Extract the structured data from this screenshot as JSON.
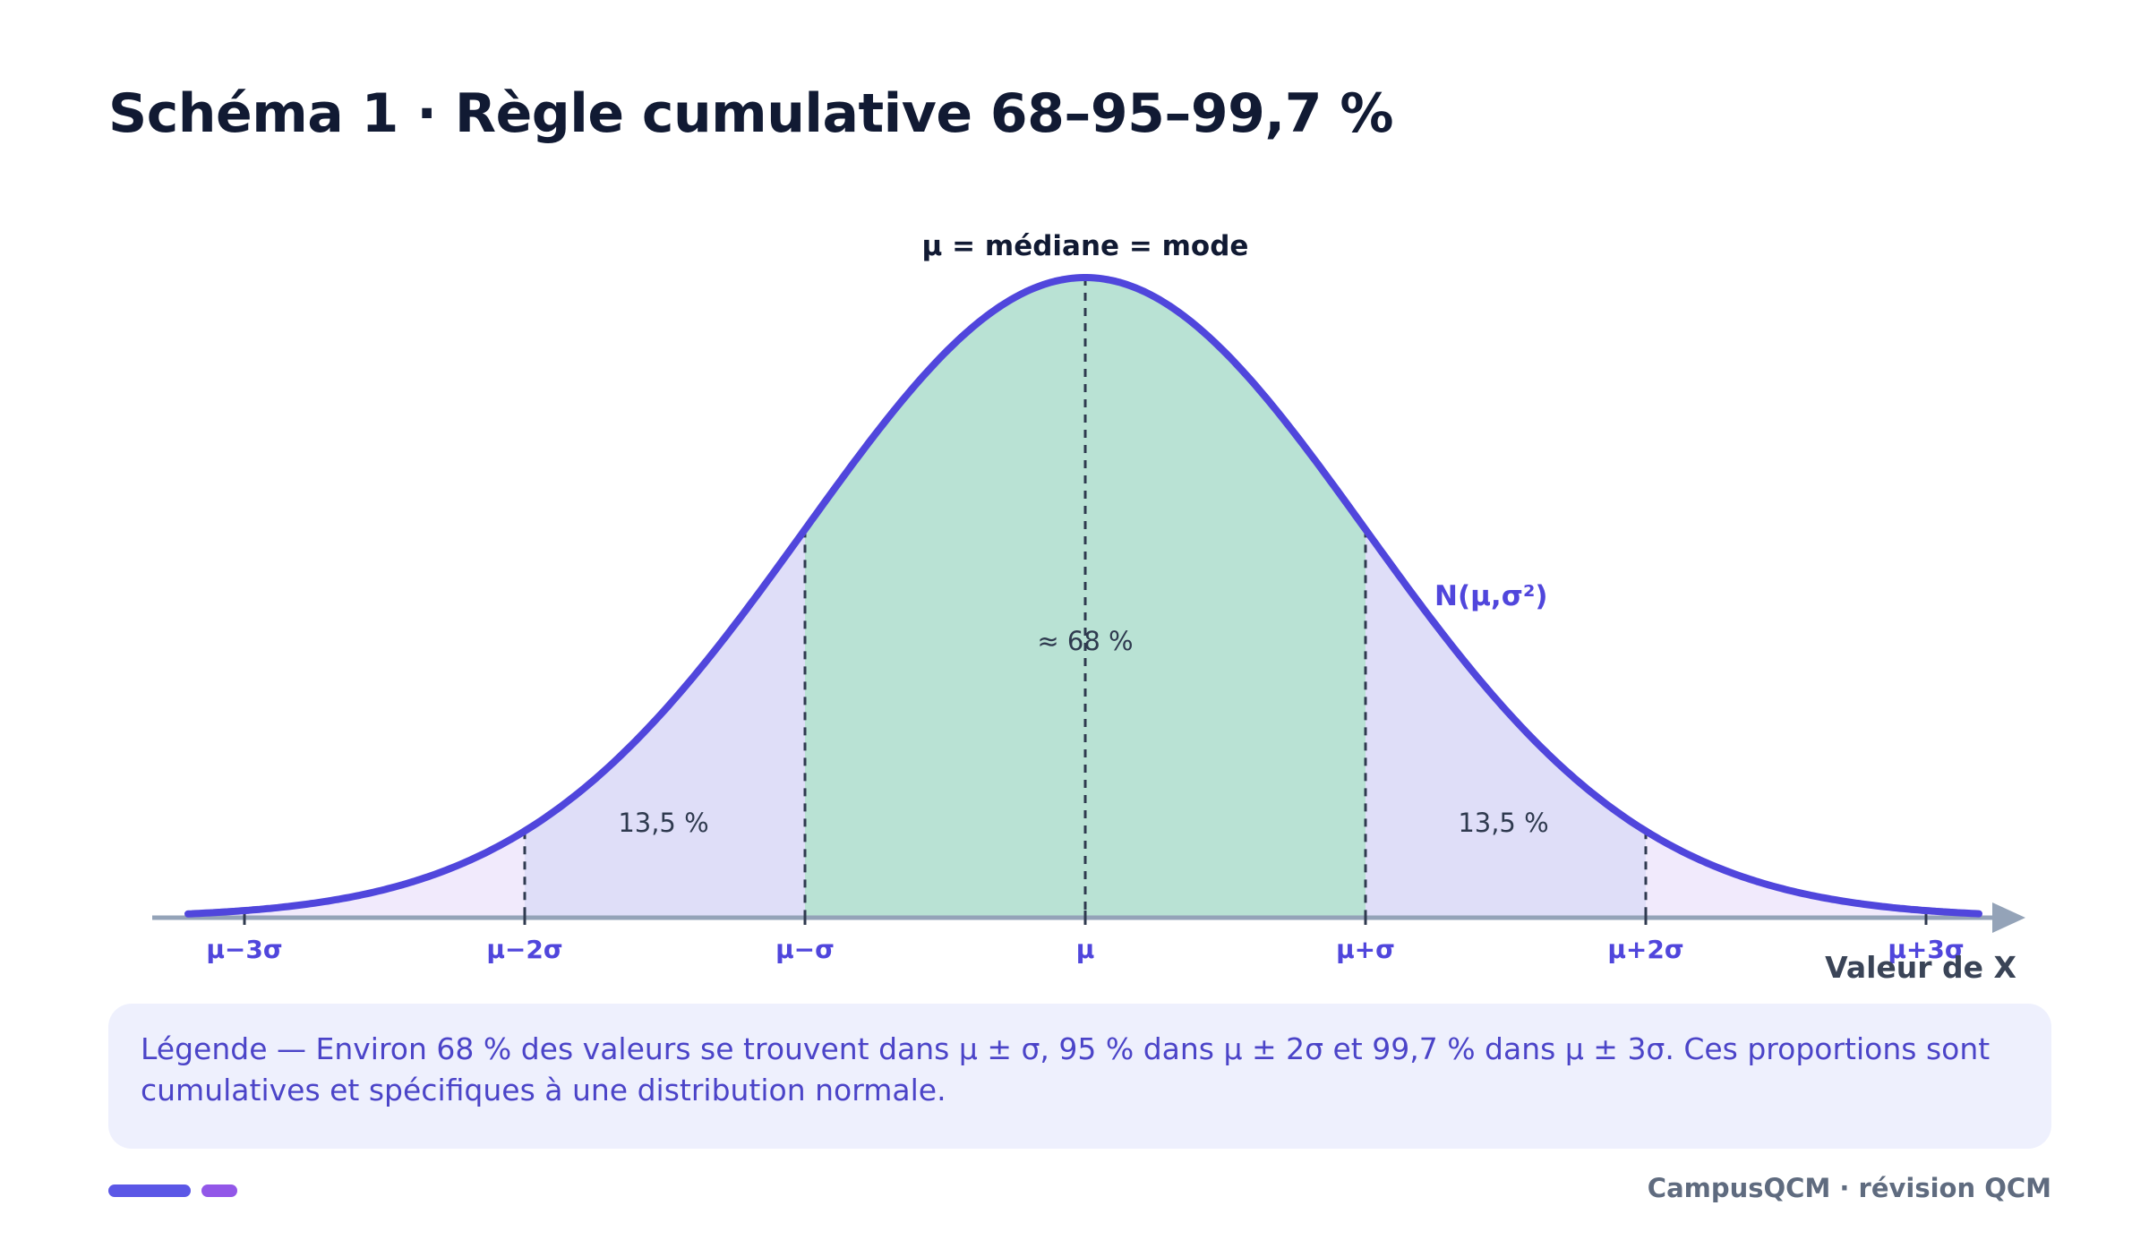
{
  "title": "Schéma 1 · Règle cumulative 68–95–99,7 %",
  "diagram": {
    "mean_label": "μ = médiane = mode",
    "center_percent": "≈ 68 %",
    "left_band_percent": "13,5 %",
    "right_band_percent": "13,5 %",
    "curve_label": "N(μ,σ²)",
    "axis_label": "Valeur de X",
    "ticks": [
      "μ−3σ",
      "μ−2σ",
      "μ−σ",
      "μ",
      "μ+σ",
      "μ+2σ",
      "μ+3σ"
    ],
    "colors": {
      "curve": "#5046dc",
      "center_fill": "#b9e2d4",
      "one_to_two_sigma_fill": "#dfdef8",
      "tail_fill": "#f1eafc",
      "axis": "#94a3b8",
      "tick_label": "#5046dc"
    }
  },
  "legend": {
    "text": "Légende — Environ 68 % des valeurs se trouvent dans μ ± σ, 95 % dans μ ± 2σ et 99,7 % dans μ ± 3σ. Ces proportions sont cumulatives et spécifiques à une distribution normale."
  },
  "footer": {
    "brand": "CampusQCM · révision QCM"
  }
}
